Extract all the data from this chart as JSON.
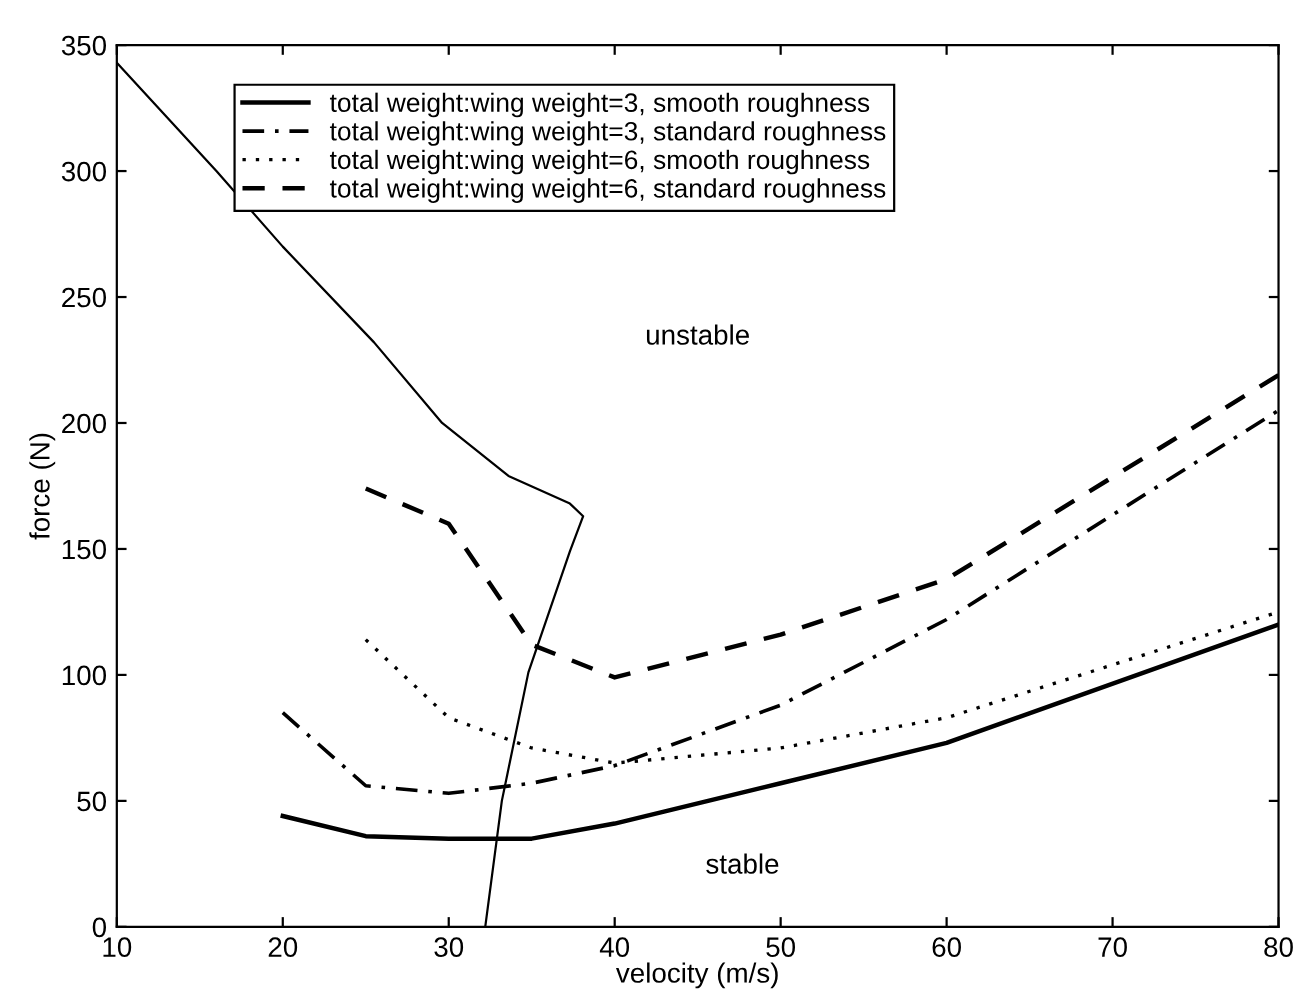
{
  "chart_data": {
    "type": "line",
    "xlabel": "velocity (m/s)",
    "ylabel": "force (N)",
    "xlim": [
      10,
      80
    ],
    "ylim": [
      0,
      350
    ],
    "xticks": [
      10,
      20,
      30,
      40,
      50,
      60,
      70,
      80
    ],
    "yticks": [
      0,
      50,
      100,
      150,
      200,
      250,
      300,
      350
    ],
    "grid": false,
    "legend": "top left",
    "series": [
      {
        "name": "total weight:wing weight=3, smooth roughness",
        "color": "#000000",
        "line_style": "solid",
        "x": [
          20,
          25,
          30,
          35,
          40,
          50,
          60,
          80
        ],
        "values": [
          44,
          36,
          35,
          35,
          41,
          57,
          73,
          120
        ]
      },
      {
        "name": "total weight:wing weight=3, standard roughness",
        "color": "#000000",
        "line_style": "dashdot",
        "x": [
          20,
          25,
          30,
          35,
          40,
          50,
          60,
          80
        ],
        "values": [
          85,
          56,
          53,
          57,
          64,
          88,
          122,
          205
        ]
      },
      {
        "name": "total weight:wing weight=6, smooth roughness",
        "color": "#000000",
        "line_style": "dotted",
        "x": [
          25,
          30,
          35,
          40,
          50,
          60,
          80
        ],
        "values": [
          114,
          83,
          71,
          65,
          71,
          83,
          125
        ]
      },
      {
        "name": "total weight:wing weight=6, standard roughness",
        "color": "#000000",
        "line_style": "dashed",
        "x": [
          25,
          30,
          35,
          40,
          50,
          60,
          80
        ],
        "values": [
          174,
          160,
          112,
          99,
          116,
          138,
          219
        ]
      },
      {
        "color": "#000000",
        "line_style": "solid",
        "x": [
          10,
          16,
          20,
          25.5,
          29.6,
          33.6,
          37.3,
          38.1,
          37.3,
          34.8,
          33.2,
          32.2
        ],
        "values": [
          343,
          300,
          270,
          232,
          200,
          179,
          168,
          163,
          149,
          101,
          50,
          0
        ]
      }
    ],
    "annotations": [
      "unstable",
      "stable"
    ]
  }
}
